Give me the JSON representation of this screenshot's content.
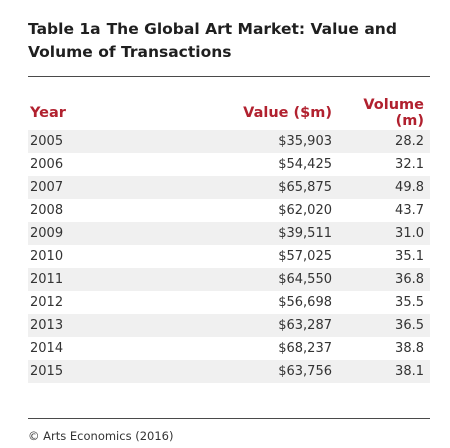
{
  "title": {
    "number": "Table 1a",
    "text": "The Global Art Market: Value and Volume of Transactions"
  },
  "table": {
    "headers": {
      "year": "Year",
      "value": "Value ($m)",
      "volume": "Volume (m)"
    },
    "rows": [
      {
        "year": "2005",
        "value": "$35,903",
        "volume": "28.2"
      },
      {
        "year": "2006",
        "value": "$54,425",
        "volume": "32.1"
      },
      {
        "year": "2007",
        "value": "$65,875",
        "volume": "49.8"
      },
      {
        "year": "2008",
        "value": "$62,020",
        "volume": "43.7"
      },
      {
        "year": "2009",
        "value": "$39,511",
        "volume": "31.0"
      },
      {
        "year": "2010",
        "value": "$57,025",
        "volume": "35.1"
      },
      {
        "year": "2011",
        "value": "$64,550",
        "volume": "36.8"
      },
      {
        "year": "2012",
        "value": "$56,698",
        "volume": "35.5"
      },
      {
        "year": "2013",
        "value": "$63,287",
        "volume": "36.5"
      },
      {
        "year": "2014",
        "value": "$68,237",
        "volume": "38.8"
      },
      {
        "year": "2015",
        "value": "$63,756",
        "volume": "38.1"
      }
    ]
  },
  "source": "© Arts Economics (2016)",
  "colors": {
    "header": "#b1212f",
    "row_shade": "#f0f0f0",
    "rule": "#4a4a4a"
  }
}
